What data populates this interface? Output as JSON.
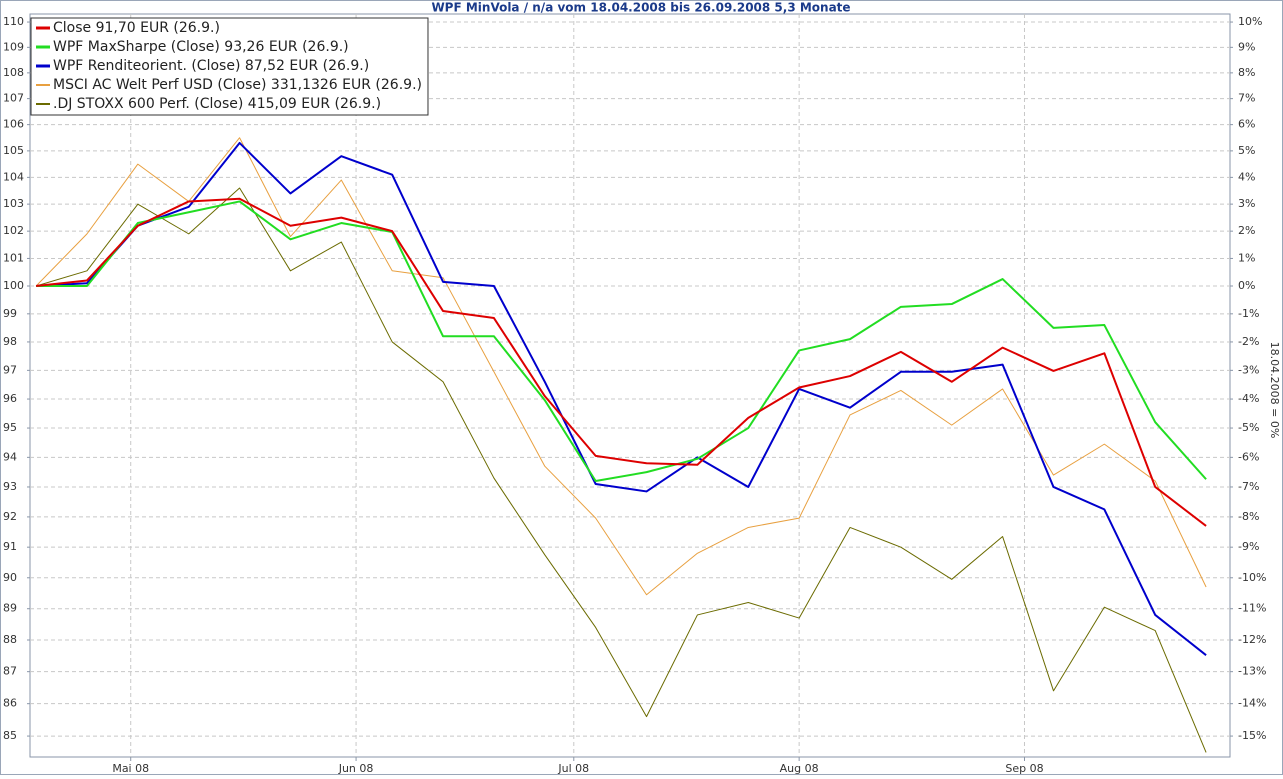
{
  "chart_data": {
    "type": "line",
    "title": "WPF MinVola / n/a vom 18.04.2008 bis 26.09.2008 5,3 Monate",
    "y2_label": "18.04.2008 = 0%",
    "log_y": true,
    "grid": true,
    "legend": "top-left",
    "x": [
      0,
      1,
      2,
      3,
      4,
      5,
      6,
      7,
      8,
      9,
      10,
      11,
      12,
      13,
      14,
      15,
      16,
      17,
      18,
      19,
      20,
      21,
      22,
      23
    ],
    "xlim": [
      -0.12,
      23.47
    ],
    "xticks": [
      {
        "value": 1.86,
        "label": "Mai 08"
      },
      {
        "value": 6.29,
        "label": "Jun 08"
      },
      {
        "value": 10.57,
        "label": "Jul 08"
      },
      {
        "value": 15,
        "label": "Aug 08"
      },
      {
        "value": 19.43,
        "label": "Sep 08"
      }
    ],
    "ylim": [
      84.36,
      110.32
    ],
    "yticks": [
      85,
      86,
      87,
      88,
      89,
      90,
      91,
      92,
      93,
      94,
      95,
      96,
      97,
      98,
      99,
      100,
      101,
      102,
      103,
      104,
      105,
      106,
      107,
      108,
      109,
      110
    ],
    "y2lim": [
      -15.64,
      10.32
    ],
    "y2ticks": [
      {
        "value": -15,
        "label": "-15%"
      },
      {
        "value": -14,
        "label": "-14%"
      },
      {
        "value": -13,
        "label": "-13%"
      },
      {
        "value": -12,
        "label": "-12%"
      },
      {
        "value": -11,
        "label": "-11%"
      },
      {
        "value": -10,
        "label": "-10%"
      },
      {
        "value": -9,
        "label": "-9%"
      },
      {
        "value": -8,
        "label": "-8%"
      },
      {
        "value": -7,
        "label": "-7%"
      },
      {
        "value": -6,
        "label": "-6%"
      },
      {
        "value": -5,
        "label": "-5%"
      },
      {
        "value": -4,
        "label": "-4%"
      },
      {
        "value": -3,
        "label": "-3%"
      },
      {
        "value": -2,
        "label": "-2%"
      },
      {
        "value": -1,
        "label": "-1%"
      },
      {
        "value": 0,
        "label": "0%"
      },
      {
        "value": 1,
        "label": "1%"
      },
      {
        "value": 2,
        "label": "2%"
      },
      {
        "value": 3,
        "label": "3%"
      },
      {
        "value": 4,
        "label": "4%"
      },
      {
        "value": 5,
        "label": "5%"
      },
      {
        "value": 6,
        "label": "6%"
      },
      {
        "value": 7,
        "label": "7%"
      },
      {
        "value": 8,
        "label": "8%"
      },
      {
        "value": 9,
        "label": "9%"
      },
      {
        "value": 10,
        "label": "10%"
      }
    ],
    "series": [
      {
        "name": "Close 91,70 EUR (26.9.)",
        "color": "#dd0000",
        "line_width": 2,
        "values": [
          100,
          100.2,
          102.2,
          103.1,
          103.2,
          102.2,
          102.5,
          102,
          99.1,
          98.85,
          96.1,
          94.05,
          93.8,
          93.75,
          95.35,
          96.4,
          96.8,
          97.65,
          96.6,
          97.8,
          96.98,
          97.6,
          93,
          91.7
        ]
      },
      {
        "name": "WPF MaxSharpe (Close) 93,26 EUR (26.9.)",
        "color": "#22dd22",
        "line_width": 2,
        "values": [
          100,
          100,
          102.3,
          102.7,
          103.1,
          101.7,
          102.3,
          101.97,
          98.2,
          98.2,
          95.96,
          93.2,
          93.5,
          93.95,
          95,
          97.7,
          98.1,
          99.25,
          99.35,
          100.25,
          98.5,
          98.6,
          95.2,
          93.26
        ]
      },
      {
        "name": "WPF Renditeorient. (Close) 87,52 EUR (26.9.)",
        "color": "#0000cc",
        "line_width": 2,
        "values": [
          100,
          100.1,
          102.2,
          102.9,
          105.3,
          103.4,
          104.8,
          104.1,
          100.15,
          100,
          96.6,
          93.1,
          92.85,
          94,
          93,
          96.35,
          95.7,
          96.95,
          96.95,
          97.2,
          93,
          92.25,
          88.8,
          87.52
        ]
      },
      {
        "name": "MSCI AC Welt Perf USD (Close) 331,1326 EUR (26.9.)",
        "color": "#e8a040",
        "line_width": 1,
        "values": [
          100,
          101.9,
          104.5,
          103.1,
          105.5,
          101.8,
          103.9,
          100.55,
          100.3,
          96.95,
          93.7,
          91.96,
          89.45,
          90.8,
          91.65,
          91.96,
          95.45,
          96.3,
          95.1,
          96.35,
          93.4,
          94.45,
          93.2,
          89.7
        ]
      },
      {
        "name": ".DJ STOXX 600 Perf. (Close) 415,09 EUR (26.9.)",
        "color": "#6b6b00",
        "line_width": 1,
        "values": [
          100,
          100.55,
          103,
          101.9,
          103.6,
          100.55,
          101.6,
          98,
          96.6,
          93.3,
          90.75,
          88.4,
          85.6,
          88.8,
          89.2,
          88.7,
          91.65,
          91,
          89.95,
          91.35,
          86.4,
          89.05,
          88.3,
          84.5
        ]
      }
    ]
  }
}
